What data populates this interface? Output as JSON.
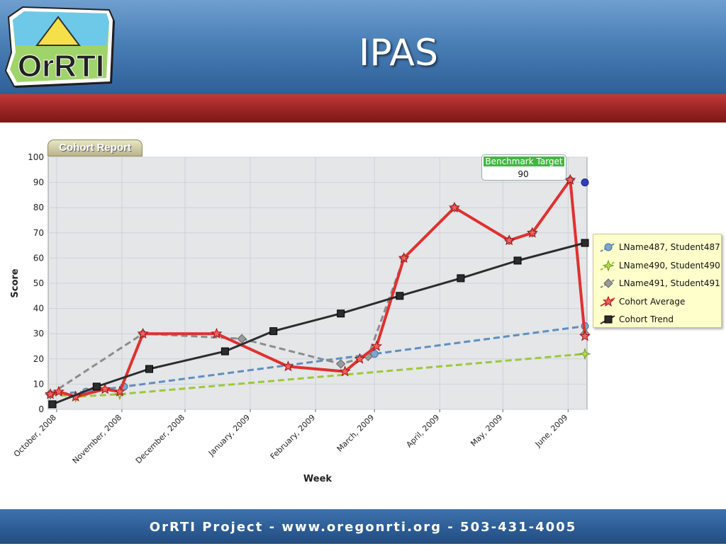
{
  "slide": {
    "title": "IPAS",
    "footer": "OrRTI Project - www.oregonrti.org - 503-431-4005",
    "logo_text": "OrRTI",
    "tab_label": "Cohort Report"
  },
  "colors": {
    "header_blue": "#4a7fb6",
    "band_red": "#9a2424",
    "plot_bg": "#e4e6e8"
  },
  "tooltip": {
    "title": "Benchmark Target",
    "value": "90"
  },
  "chart_data": {
    "type": "line",
    "title": "",
    "xlabel": "Week",
    "ylabel": "Score",
    "ylim": [
      0,
      100
    ],
    "yticks": [
      0,
      10,
      20,
      30,
      40,
      50,
      60,
      70,
      80,
      90,
      100
    ],
    "xlim": [
      "2008-09-27",
      "2009-06-10"
    ],
    "xticks": [
      {
        "date": "2008-10-01",
        "label": "October, 2008"
      },
      {
        "date": "2008-11-01",
        "label": "November, 2008"
      },
      {
        "date": "2008-12-01",
        "label": "December, 2008"
      },
      {
        "date": "2009-01-01",
        "label": "January, 2009"
      },
      {
        "date": "2009-02-01",
        "label": "February, 2009"
      },
      {
        "date": "2009-03-01",
        "label": "March, 2009"
      },
      {
        "date": "2009-04-01",
        "label": "April, 2009"
      },
      {
        "date": "2009-05-01",
        "label": "May, 2009"
      },
      {
        "date": "2009-06-01",
        "label": "June, 2009"
      }
    ],
    "grid": true,
    "legend_position": "right",
    "series": [
      {
        "name": "LName487, Student487",
        "color": "#5f8fbf",
        "style": "dashed",
        "marker": "circle",
        "points": [
          {
            "x": "2008-09-28",
            "y": 6
          },
          {
            "x": "2008-10-15",
            "y": 7
          },
          {
            "x": "2008-11-02",
            "y": 9
          },
          {
            "x": "2009-03-01",
            "y": 22
          },
          {
            "x": "2009-06-09",
            "y": 33
          }
        ]
      },
      {
        "name": "LName490, Student490",
        "color": "#9dc83a",
        "style": "dashed",
        "marker": "star4",
        "points": [
          {
            "x": "2008-09-28",
            "y": 6
          },
          {
            "x": "2008-10-10",
            "y": 5
          },
          {
            "x": "2008-10-31",
            "y": 6
          },
          {
            "x": "2009-06-09",
            "y": 22
          }
        ]
      },
      {
        "name": "LName491, Student491",
        "color": "#8c8c8c",
        "style": "dashed",
        "marker": "diamond",
        "points": [
          {
            "x": "2008-09-28",
            "y": 6
          },
          {
            "x": "2008-11-11",
            "y": 30
          },
          {
            "x": "2008-12-28",
            "y": 28
          },
          {
            "x": "2009-02-13",
            "y": 18
          },
          {
            "x": "2009-02-26",
            "y": 21
          },
          {
            "x": "2009-03-15",
            "y": 60
          },
          {
            "x": "2009-04-08",
            "y": 80
          },
          {
            "x": "2009-05-04",
            "y": 67
          },
          {
            "x": "2009-05-15",
            "y": 70
          },
          {
            "x": "2009-06-02",
            "y": 91
          },
          {
            "x": "2009-06-09",
            "y": 30
          }
        ]
      },
      {
        "name": "Cohort Average",
        "color": "#e03030",
        "style": "solid",
        "marker": "star",
        "points": [
          {
            "x": "2008-09-28",
            "y": 6
          },
          {
            "x": "2008-10-02",
            "y": 7
          },
          {
            "x": "2008-10-10",
            "y": 5
          },
          {
            "x": "2008-10-24",
            "y": 8
          },
          {
            "x": "2008-10-31",
            "y": 7
          },
          {
            "x": "2008-11-11",
            "y": 30
          },
          {
            "x": "2008-12-16",
            "y": 30
          },
          {
            "x": "2009-01-19",
            "y": 17
          },
          {
            "x": "2009-02-15",
            "y": 15
          },
          {
            "x": "2009-02-22",
            "y": 20
          },
          {
            "x": "2009-03-02",
            "y": 25
          },
          {
            "x": "2009-03-15",
            "y": 60
          },
          {
            "x": "2009-04-08",
            "y": 80
          },
          {
            "x": "2009-05-04",
            "y": 67
          },
          {
            "x": "2009-05-15",
            "y": 70
          },
          {
            "x": "2009-06-02",
            "y": 91
          },
          {
            "x": "2009-06-09",
            "y": 29
          }
        ]
      },
      {
        "name": "Cohort Trend",
        "color": "#2c2c2c",
        "style": "solid",
        "marker": "square",
        "points": [
          {
            "x": "2008-09-29",
            "y": 2
          },
          {
            "x": "2008-10-20",
            "y": 9
          },
          {
            "x": "2008-11-14",
            "y": 16
          },
          {
            "x": "2008-12-20",
            "y": 23
          },
          {
            "x": "2009-01-12",
            "y": 31
          },
          {
            "x": "2009-02-13",
            "y": 38
          },
          {
            "x": "2009-03-13",
            "y": 45
          },
          {
            "x": "2009-04-11",
            "y": 52
          },
          {
            "x": "2009-05-08",
            "y": 59
          },
          {
            "x": "2009-06-09",
            "y": 66
          }
        ]
      }
    ],
    "annotations": [
      {
        "text": "Benchmark Target",
        "value": 90,
        "x": "2009-06-09"
      }
    ],
    "benchmark_point": {
      "x": "2009-06-09",
      "y": 90
    }
  }
}
